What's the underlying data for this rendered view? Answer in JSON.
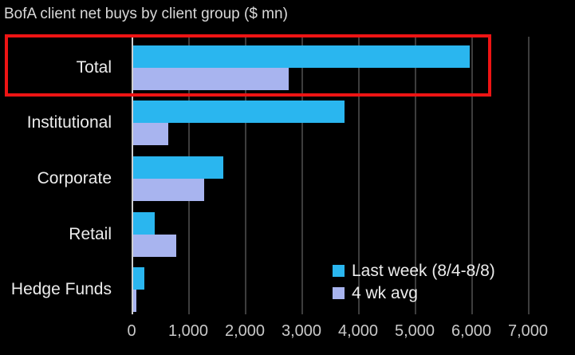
{
  "title": "BofA client net buys by client group ($ mn)",
  "chart_data": {
    "type": "bar",
    "orientation": "horizontal",
    "title": "BofA client net buys by client group ($ mn)",
    "categories": [
      "Total",
      "Institutional",
      "Corporate",
      "Retail",
      "Hedge Funds"
    ],
    "series": [
      {
        "name": "Last week (8/4-8/8)",
        "color": "#2ab6ef",
        "values": [
          5950,
          3730,
          1590,
          380,
          200
        ]
      },
      {
        "name": "4 wk avg",
        "color": "#a8b4ef",
        "values": [
          2750,
          620,
          1250,
          760,
          60
        ]
      }
    ],
    "xlim": [
      0,
      7000
    ],
    "x_ticks": [
      {
        "value": 0,
        "label": "0"
      },
      {
        "value": 1000,
        "label": "1,000"
      },
      {
        "value": 2000,
        "label": "2,000"
      },
      {
        "value": 3000,
        "label": "3,000"
      },
      {
        "value": 4000,
        "label": "4,000"
      },
      {
        "value": 5000,
        "label": "5,000"
      },
      {
        "value": 6000,
        "label": "6,000"
      },
      {
        "value": 7000,
        "label": "7,000"
      }
    ],
    "grid": true,
    "legend_position": "inside-bottom-right"
  },
  "highlight": {
    "target_category": "Total",
    "color": "#ee1414"
  },
  "colors": {
    "background": "#000000",
    "grid": "#3d3d3d",
    "zero_axis": "#cfcfcf",
    "title_text": "#d9d9d9",
    "label_text": "#ececec",
    "tick_text": "#c9c9c9"
  }
}
